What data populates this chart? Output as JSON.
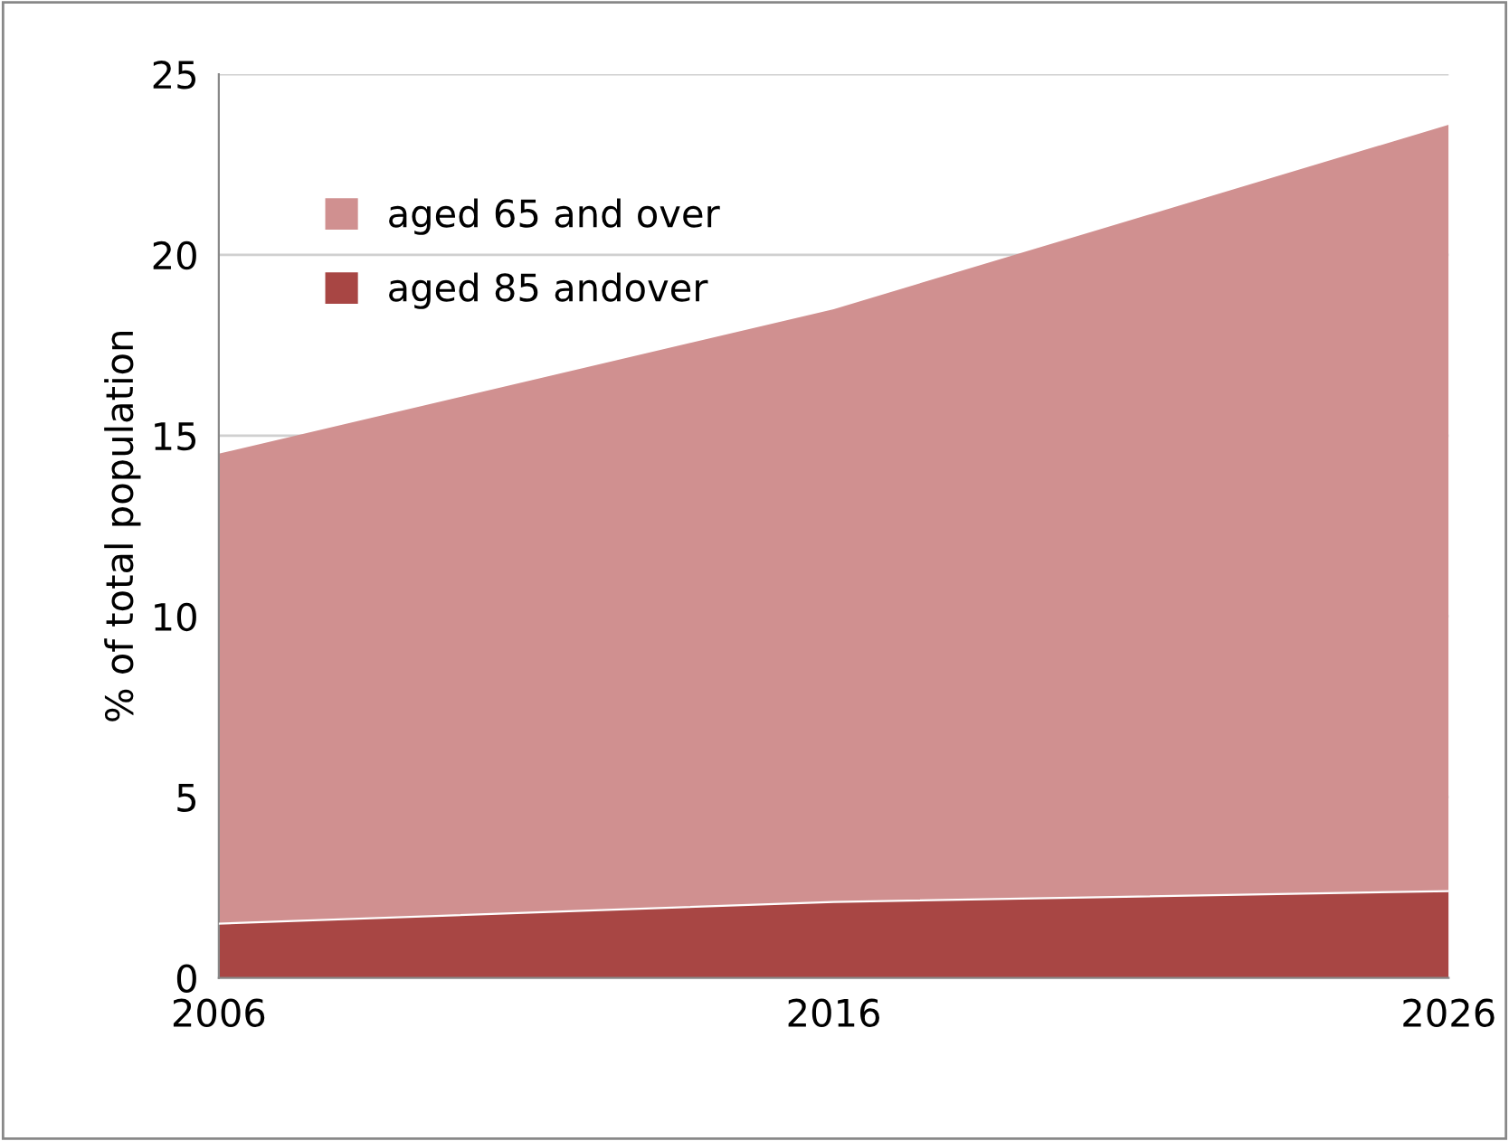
{
  "chart_data": {
    "type": "area",
    "ylabel": "% of total population",
    "x": [
      2006,
      2016,
      2026
    ],
    "xlim": [
      2006,
      2026
    ],
    "xticks": [
      2006,
      2016,
      2026
    ],
    "ylim": [
      0,
      25
    ],
    "yticks": [
      0,
      5,
      10,
      15,
      20,
      25
    ],
    "grid": "y",
    "legend": "top left",
    "series": [
      {
        "name": "aged 65 and over",
        "color": "#d09090",
        "values": [
          14.5,
          18.5,
          23.6
        ]
      },
      {
        "name": "aged 85 andover",
        "color": "#a84644",
        "values": [
          1.5,
          2.1,
          2.4
        ]
      }
    ]
  }
}
